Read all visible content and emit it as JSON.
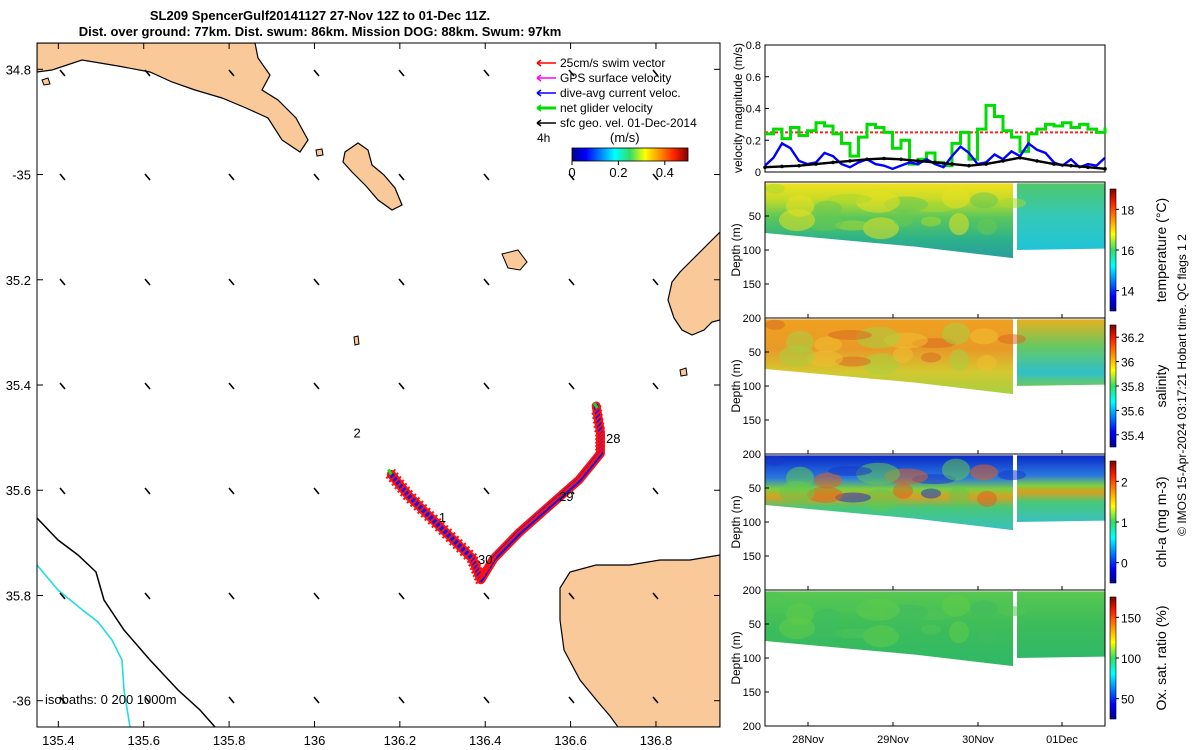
{
  "title_line1": "SL209 SpencerGulf20141127 27-Nov 12Z to 01-Dec 11Z.",
  "title_line2": "Dist. over ground: 77km. Dist. swum: 86km. Mission DOG: 88km. Swum: 97km",
  "colors": {
    "land": "#f9c99a",
    "track_red": "#ff1010",
    "track_blue": "#0b1ce6",
    "track_green": "#18dd18",
    "isobath_cyan": "#22dddd",
    "swim_vector": "#ff0000",
    "gps_vector": "#ff00ff",
    "current_vector": "#0000ff",
    "glider_vector": "#00dd00",
    "geo_vector": "#000000"
  },
  "chart_data": [
    {
      "type": "scatter",
      "subtype": "map",
      "xlim": [
        135.35,
        136.95
      ],
      "ylim": [
        -36.05,
        -34.75
      ],
      "xticks": [
        135.4,
        135.6,
        135.8,
        136,
        136.2,
        136.4,
        136.6,
        136.8
      ],
      "xtick_labels": [
        "135.4",
        "135.6",
        "135.8",
        "136",
        "136.2",
        "136.4",
        "136.6",
        "136.8"
      ],
      "yticks": [
        -34.8,
        -35,
        -35.2,
        -35.4,
        -35.6,
        -35.8,
        -36
      ],
      "ytick_labels": [
        "34.8",
        "-35",
        "35.2",
        "35.4",
        "35.6",
        "35.8",
        "-36"
      ],
      "legend": [
        {
          "label": "25cm/s swim vector",
          "color": "#ff0000"
        },
        {
          "label": "GPS surface velocity",
          "color": "#ff00ff"
        },
        {
          "label": "dive-avg current veloc.",
          "color": "#0000ff"
        },
        {
          "label": "net glider velocity",
          "color": "#00dd00"
        },
        {
          "label": "sfc geo. vel. 01-Dec-2014",
          "color": "#000000"
        }
      ],
      "legend_position": "top-right",
      "legend_extra": "4h",
      "colorbar": {
        "title": "(m/s)",
        "ticks": [
          "0",
          "0.2",
          "0.4"
        ],
        "range": [
          0,
          0.5
        ]
      },
      "isobath_note": "isobaths: 0   200  1000m",
      "day_labels": [
        {
          "text": "2",
          "lon": 136.1,
          "lat": -35.5
        },
        {
          "text": "1",
          "lon": 136.3,
          "lat": -35.66
        },
        {
          "text": "30",
          "lon": 136.4,
          "lat": -35.74
        },
        {
          "text": "29",
          "lon": 136.59,
          "lat": -35.62
        },
        {
          "text": "28",
          "lon": 136.7,
          "lat": -35.51
        }
      ],
      "track": [
        {
          "lon": 136.18,
          "lat": -35.57
        },
        {
          "lon": 136.22,
          "lat": -35.61
        },
        {
          "lon": 136.27,
          "lat": -35.65
        },
        {
          "lon": 136.32,
          "lat": -35.69
        },
        {
          "lon": 136.37,
          "lat": -35.73
        },
        {
          "lon": 136.39,
          "lat": -35.77
        },
        {
          "lon": 136.42,
          "lat": -35.73
        },
        {
          "lon": 136.48,
          "lat": -35.68
        },
        {
          "lon": 136.55,
          "lat": -35.63
        },
        {
          "lon": 136.62,
          "lat": -35.58
        },
        {
          "lon": 136.67,
          "lat": -35.53
        },
        {
          "lon": 136.67,
          "lat": -35.49
        },
        {
          "lon": 136.66,
          "lat": -35.44
        }
      ]
    },
    {
      "type": "line",
      "ylabel": "velocity magnitude (m/s)",
      "ylim": [
        0,
        0.8
      ],
      "yticks": [
        0,
        0.2,
        0.4,
        0.6,
        0.8
      ],
      "xlim": [
        0,
        4
      ],
      "series": [
        {
          "color": "#ff2020",
          "x": [
            0,
            4
          ],
          "y": [
            0.25,
            0.25
          ]
        },
        {
          "color": "#00dd00",
          "x": [
            0,
            0.1,
            0.2,
            0.3,
            0.4,
            0.5,
            0.6,
            0.7,
            0.8,
            0.9,
            1.0,
            1.1,
            1.2,
            1.3,
            1.4,
            1.5,
            1.6,
            1.7,
            1.8,
            1.9,
            2.0,
            2.1,
            2.2,
            2.3,
            2.4,
            2.5,
            2.6,
            2.7,
            2.8,
            2.9,
            3.0,
            3.1,
            3.2,
            3.3,
            3.4,
            3.5,
            3.6,
            3.7,
            3.8,
            3.9,
            4.0
          ],
          "y": [
            0.24,
            0.27,
            0.21,
            0.28,
            0.23,
            0.26,
            0.31,
            0.29,
            0.24,
            0.18,
            0.1,
            0.22,
            0.3,
            0.28,
            0.25,
            0.15,
            0.2,
            0.05,
            0.08,
            0.12,
            0.06,
            0.04,
            0.18,
            0.25,
            0.08,
            0.27,
            0.42,
            0.35,
            0.26,
            0.22,
            0.13,
            0.24,
            0.27,
            0.3,
            0.29,
            0.31,
            0.28,
            0.3,
            0.27,
            0.25,
            0.28
          ]
        },
        {
          "color": "#0000ff",
          "x": [
            0,
            0.1,
            0.2,
            0.3,
            0.4,
            0.5,
            0.6,
            0.7,
            0.8,
            0.9,
            1.0,
            1.1,
            1.2,
            1.3,
            1.4,
            1.5,
            1.6,
            1.7,
            1.8,
            1.9,
            2.0,
            2.1,
            2.2,
            2.3,
            2.4,
            2.5,
            2.6,
            2.7,
            2.8,
            2.9,
            3.0,
            3.1,
            3.2,
            3.3,
            3.4,
            3.5,
            3.6,
            3.7,
            3.8,
            3.9,
            4.0
          ],
          "y": [
            0.04,
            0.09,
            0.18,
            0.15,
            0.07,
            0.05,
            0.06,
            0.12,
            0.1,
            0.05,
            0.03,
            0.06,
            0.08,
            0.05,
            0.04,
            0.02,
            0.04,
            0.06,
            0.05,
            0.08,
            0.05,
            0.03,
            0.1,
            0.16,
            0.12,
            0.05,
            0.06,
            0.11,
            0.08,
            0.13,
            0.1,
            0.18,
            0.14,
            0.12,
            0.06,
            0.04,
            0.08,
            0.03,
            0.05,
            0.04,
            0.09
          ]
        },
        {
          "color": "#000000",
          "x": [
            0,
            0.2,
            0.4,
            0.6,
            0.8,
            1.0,
            1.2,
            1.4,
            1.6,
            1.8,
            2.0,
            2.2,
            2.4,
            2.6,
            2.8,
            3.0,
            3.2,
            3.4,
            3.6,
            3.8,
            4.0
          ],
          "y": [
            0.03,
            0.035,
            0.04,
            0.05,
            0.06,
            0.07,
            0.08,
            0.085,
            0.08,
            0.07,
            0.06,
            0.05,
            0.04,
            0.05,
            0.07,
            0.09,
            0.07,
            0.05,
            0.04,
            0.03,
            0.02
          ]
        }
      ]
    },
    {
      "type": "heatmap",
      "ylabel": "Depth (m)",
      "ylim": [
        200,
        0
      ],
      "yticks": [
        50,
        100,
        150,
        200
      ],
      "colorbar_label": "temperature (°C)",
      "colorbar_ticks": [
        "14",
        "16",
        "18"
      ]
    },
    {
      "type": "heatmap",
      "ylabel": "Depth (m)",
      "ylim": [
        200,
        0
      ],
      "yticks": [
        50,
        100,
        150,
        200
      ],
      "colorbar_label": "salinity",
      "colorbar_ticks": [
        "35.4",
        "35.6",
        "35.8",
        "36",
        "36.2"
      ]
    },
    {
      "type": "heatmap",
      "ylabel": "Depth (m)",
      "ylim": [
        200,
        0
      ],
      "yticks": [
        50,
        100,
        150,
        200
      ],
      "colorbar_label": "chl-a (mg m-3)",
      "colorbar_ticks": [
        "0",
        "1",
        "2"
      ]
    },
    {
      "type": "heatmap",
      "ylabel": "Depth (m)",
      "ylim": [
        200,
        0
      ],
      "yticks": [
        50,
        100,
        150,
        200
      ],
      "colorbar_label": "Ox. sat. ratio (%)",
      "colorbar_ticks": [
        "50",
        "100",
        "150"
      ],
      "x_tick_labels": [
        "28Nov",
        "29Nov",
        "30Nov",
        "01Dec"
      ]
    }
  ],
  "side_credit": "© IMOS 15-Apr-2024 03:17:21 Hobart time. QC flags 1  2"
}
